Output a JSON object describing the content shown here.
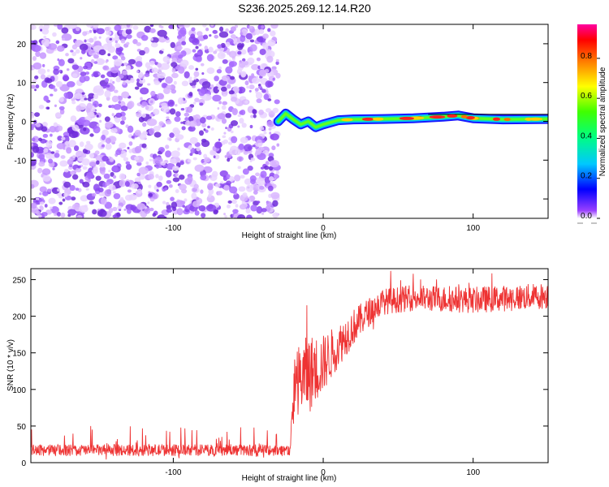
{
  "title": "S236.2025.269.12.14.R20",
  "chart_data": [
    {
      "type": "heatmap",
      "name": "spectrogram",
      "xlabel": "Height of straight line (km)",
      "ylabel": "Frequency (Hz)",
      "xlim": [
        -195,
        150
      ],
      "ylim": [
        -25,
        25
      ],
      "xticks": [
        -100,
        0,
        100
      ],
      "yticks": [
        -20,
        -10,
        0,
        10,
        20
      ],
      "noise_region_x": [
        -195,
        -30
      ],
      "signal_region_x": [
        -30,
        150
      ],
      "signal_trace": [
        {
          "x": -30,
          "y": 0.0
        },
        {
          "x": -25,
          "y": 2.0
        },
        {
          "x": -20,
          "y": 0.5
        },
        {
          "x": -15,
          "y": -0.8
        },
        {
          "x": -10,
          "y": 0.0
        },
        {
          "x": -5,
          "y": -1.5
        },
        {
          "x": 0,
          "y": -0.8
        },
        {
          "x": 10,
          "y": 0.3
        },
        {
          "x": 20,
          "y": 0.5
        },
        {
          "x": 40,
          "y": 0.6
        },
        {
          "x": 60,
          "y": 0.8
        },
        {
          "x": 80,
          "y": 1.2
        },
        {
          "x": 90,
          "y": 1.5
        },
        {
          "x": 100,
          "y": 0.8
        },
        {
          "x": 120,
          "y": 0.5
        },
        {
          "x": 150,
          "y": 0.6
        }
      ],
      "colorbar": {
        "label": "Normalized spectral amplitude",
        "ticks": [
          0.0,
          0.2,
          0.4,
          0.6,
          0.8
        ],
        "tick_labels": [
          "0.0",
          "0.2",
          "0.4",
          "0.6",
          "0.8"
        ],
        "range": [
          0,
          0.97
        ]
      },
      "colors": {
        "noise": "#7a30e8",
        "frame": "#000000"
      }
    },
    {
      "type": "line",
      "name": "snr",
      "xlabel": "Height of straight line (km)",
      "ylabel": "SNR (10 * v/v)",
      "xlim": [
        -195,
        150
      ],
      "ylim": [
        0,
        265
      ],
      "xticks": [
        -100,
        0,
        100
      ],
      "yticks": [
        0,
        50,
        100,
        150,
        200,
        250
      ],
      "series": [
        {
          "name": "SNR",
          "color": "#ee3333",
          "envelope": [
            {
              "x": -195,
              "mean": 17,
              "spread": 8
            },
            {
              "x": -22,
              "mean": 17,
              "spread": 8
            },
            {
              "x": -19,
              "mean": 110,
              "spread": 45
            },
            {
              "x": -10,
              "mean": 120,
              "spread": 55
            },
            {
              "x": 0,
              "mean": 135,
              "spread": 40
            },
            {
              "x": 10,
              "mean": 160,
              "spread": 30
            },
            {
              "x": 20,
              "mean": 185,
              "spread": 25
            },
            {
              "x": 30,
              "mean": 205,
              "spread": 20
            },
            {
              "x": 40,
              "mean": 220,
              "spread": 18
            },
            {
              "x": 60,
              "mean": 225,
              "spread": 18
            },
            {
              "x": 100,
              "mean": 222,
              "spread": 18
            },
            {
              "x": 150,
              "mean": 228,
              "spread": 18
            }
          ],
          "peaks": [
            {
              "x": -155,
              "y": 50
            },
            {
              "x": -95,
              "y": 48
            },
            {
              "x": -11,
              "y": 215
            },
            {
              "x": 45,
              "y": 262
            },
            {
              "x": 60,
              "y": 258
            }
          ]
        }
      ]
    }
  ]
}
